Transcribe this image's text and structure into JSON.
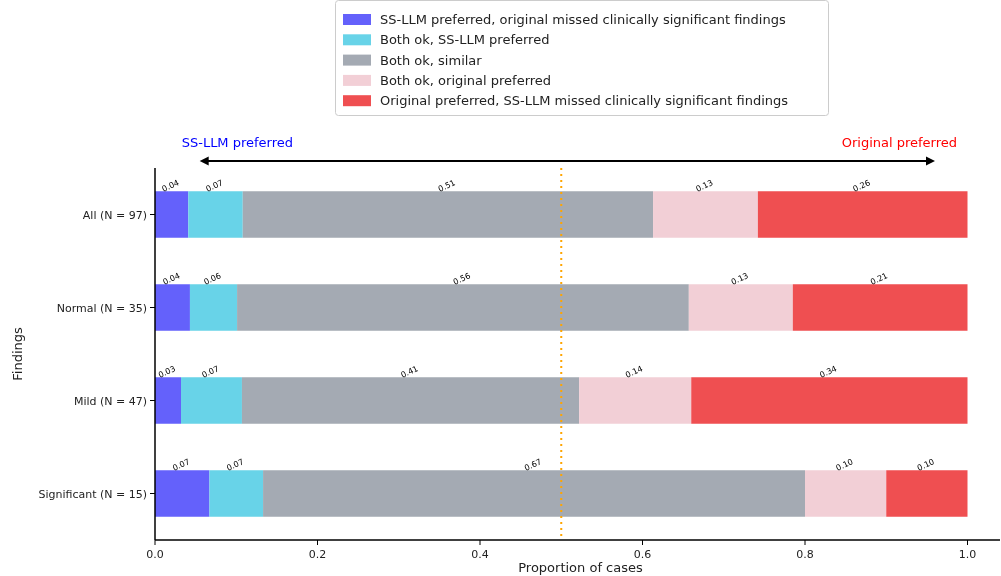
{
  "chart_data": {
    "type": "bar",
    "orientation": "horizontal",
    "stacked": true,
    "categories": [
      "All (N = 97)",
      "Normal (N = 35)",
      "Mild (N = 47)",
      "Significant (N = 15)"
    ],
    "series": [
      {
        "name": "SS-LLM preferred, original missed clinically significant findings",
        "color": "#6461fb",
        "values": [
          0.041,
          0.043,
          0.032,
          0.067
        ],
        "value_labels": [
          "0.04",
          "0.04",
          "0.03",
          "0.07"
        ]
      },
      {
        "name": "Both ok, SS-LLM preferred",
        "color": "#68d3e8",
        "values": [
          0.067,
          0.058,
          0.075,
          0.066
        ],
        "value_labels": [
          "0.07",
          "0.06",
          "0.07",
          "0.07"
        ]
      },
      {
        "name": "Both ok, similar",
        "color": "#a4aab3",
        "values": [
          0.505,
          0.556,
          0.415,
          0.667
        ],
        "value_labels": [
          "0.51",
          "0.56",
          "0.41",
          "0.67"
        ]
      },
      {
        "name": "Both ok, original preferred",
        "color": "#f2cfd6",
        "values": [
          0.129,
          0.128,
          0.138,
          0.1
        ],
        "value_labels": [
          "0.13",
          "0.13",
          "0.14",
          "0.10"
        ]
      },
      {
        "name": "Original preferred, SS-LLM missed clinically significant findings",
        "color": "#ef4f51",
        "values": [
          0.258,
          0.215,
          0.34,
          0.1
        ],
        "value_labels": [
          "0.26",
          "0.21",
          "0.34",
          "0.10"
        ]
      }
    ],
    "xlim": [
      0,
      1.04
    ],
    "xticks": [
      {
        "value": 0,
        "label": "0.0"
      },
      0.2,
      0.4,
      0.6,
      0.8,
      {
        "value": 1,
        "label": "1.0"
      }
    ],
    "xlabel": "Proportion of cases",
    "ylabel": "Findings",
    "ref_lines": [
      {
        "axis": "x",
        "value": 0.5,
        "color": "#ffa500",
        "line_style": "dotted"
      }
    ],
    "annotations": [
      "SS-LLM preferred",
      "Original preferred"
    ],
    "legend": "top"
  }
}
